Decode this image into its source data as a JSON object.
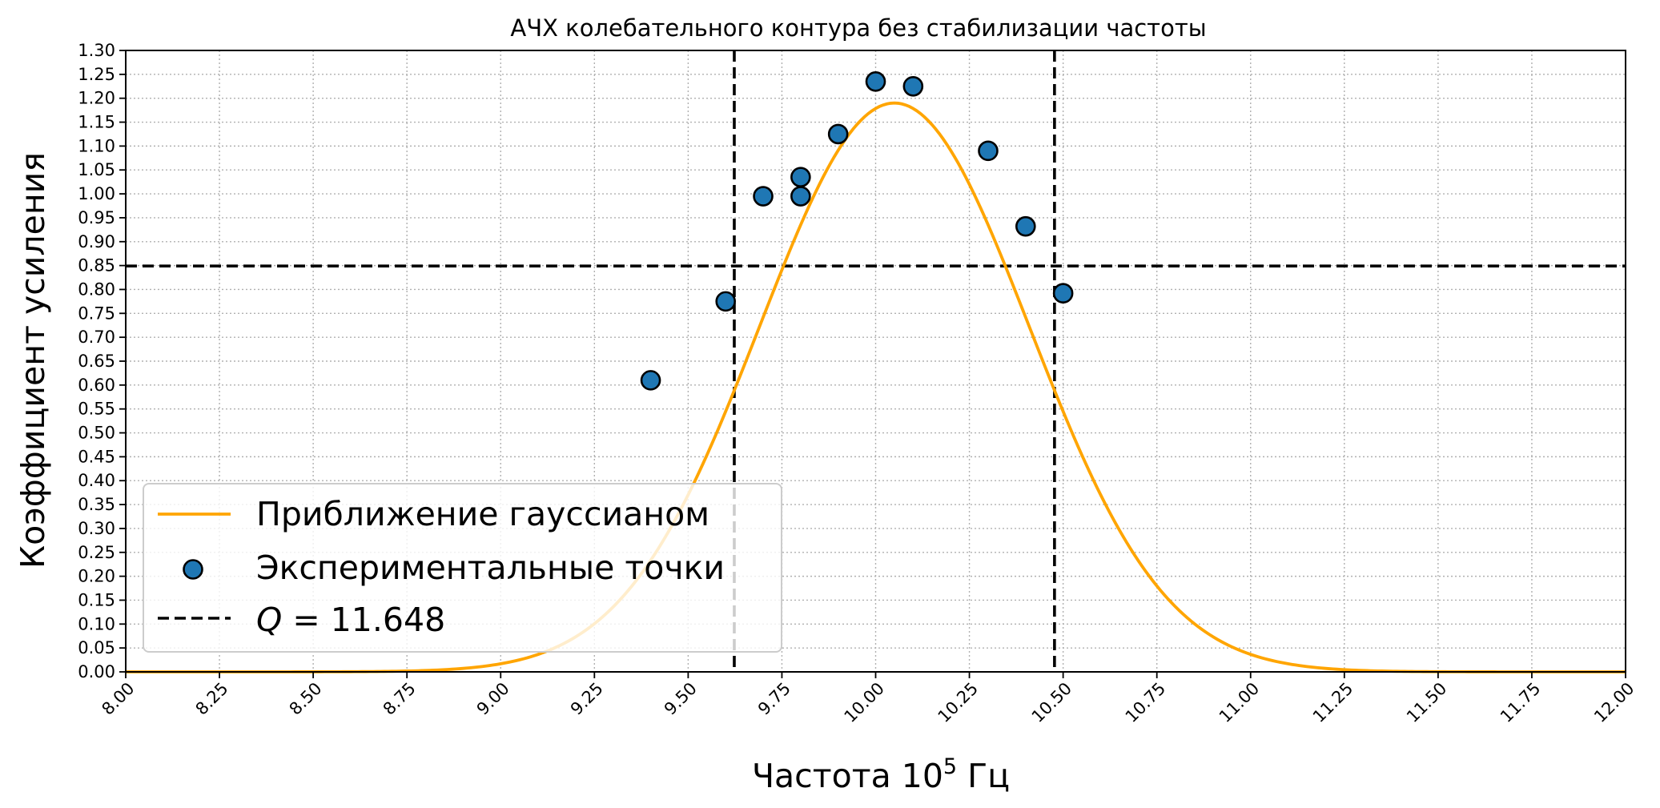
{
  "chart_data": {
    "type": "scatter",
    "title": "АЧХ колебательного контура без стабилизации частоты",
    "xlabel": "Частота 10",
    "xlabel_sup": "5",
    "xlabel_unit": " Гц",
    "ylabel": "Коэффициент усиления",
    "xlim": [
      8.0,
      12.0
    ],
    "ylim": [
      0.0,
      1.3
    ],
    "xticks": [
      "8.00",
      "8.25",
      "8.50",
      "8.75",
      "9.00",
      "9.25",
      "9.50",
      "9.75",
      "10.00",
      "10.25",
      "10.50",
      "10.75",
      "11.00",
      "11.25",
      "11.50",
      "11.75",
      "12.00"
    ],
    "yticks": [
      "0.00",
      "0.05",
      "0.10",
      "0.15",
      "0.20",
      "0.25",
      "0.30",
      "0.35",
      "0.40",
      "0.45",
      "0.50",
      "0.55",
      "0.60",
      "0.65",
      "0.70",
      "0.75",
      "0.80",
      "0.85",
      "0.90",
      "0.95",
      "1.00",
      "1.05",
      "1.10",
      "1.15",
      "1.20",
      "1.25",
      "1.30"
    ],
    "grid": true,
    "legend_position": "lower-left",
    "series": [
      {
        "name": "Приближение гауссианом",
        "kind": "line",
        "color": "#ffa500",
        "model": {
          "amplitude": 1.19,
          "center": 10.05,
          "sigma": 0.36
        }
      },
      {
        "name": "Экспериментальные точки",
        "kind": "scatter",
        "color": "#1f77b4",
        "x": [
          9.4,
          9.6,
          9.7,
          9.8,
          9.8,
          9.9,
          10.0,
          10.1,
          10.3,
          10.4,
          10.5
        ],
        "y": [
          0.61,
          0.775,
          0.995,
          0.995,
          1.035,
          1.125,
          1.235,
          1.225,
          1.09,
          0.932,
          0.792
        ]
      }
    ],
    "reference_lines": {
      "name_prefix": "Q",
      "name_value": " = 11.648",
      "color": "#000000",
      "horizontal_y": 0.849,
      "vertical_x": [
        9.623,
        10.477
      ]
    }
  }
}
